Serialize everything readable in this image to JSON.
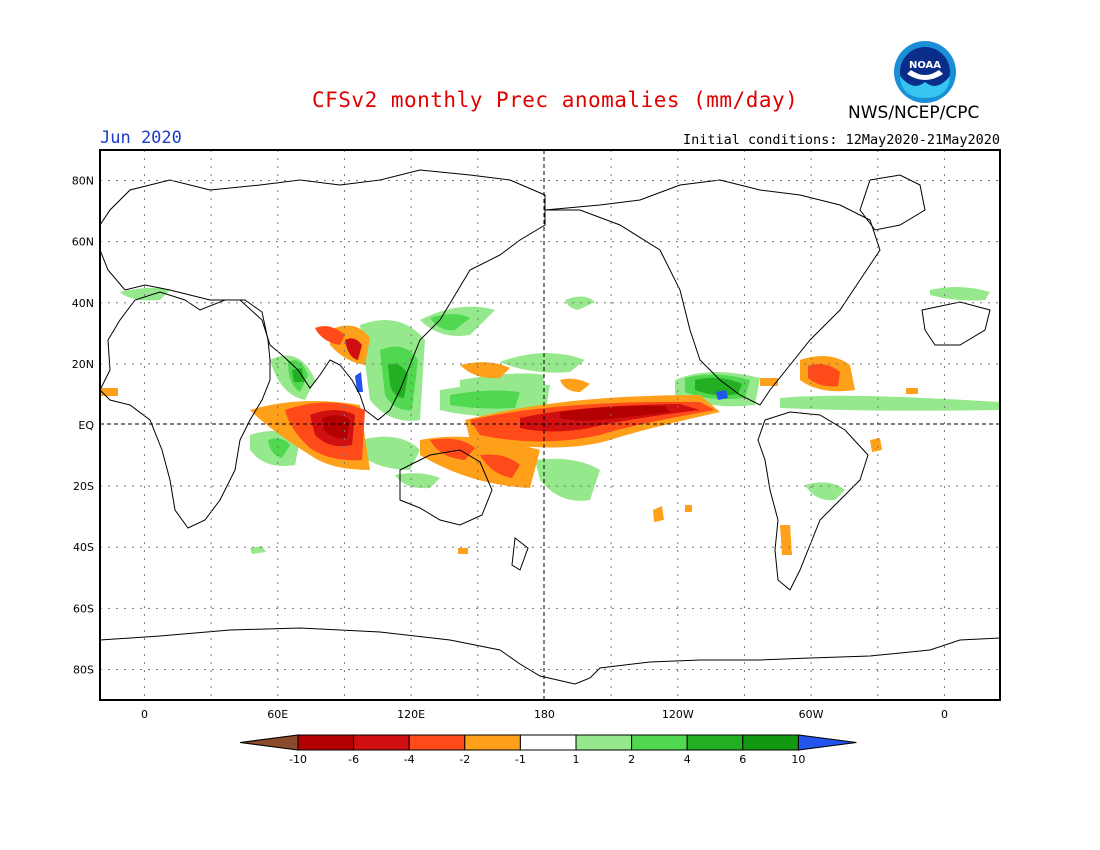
{
  "header": {
    "title": "CFSv2 monthly Prec anomalies (mm/day)",
    "month": "Jun 2020",
    "initial_conditions": "Initial conditions: 12May2020-21May2020",
    "agency": "NWS/NCEP/CPC",
    "logo_text": "NOAA"
  },
  "map": {
    "lat_labels": [
      "80N",
      "60N",
      "40N",
      "20N",
      "EQ",
      "20S",
      "40S",
      "60S",
      "80S"
    ],
    "lon_labels": [
      "0",
      "60E",
      "120E",
      "180",
      "120W",
      "60W",
      "0"
    ],
    "lat_range": [
      -90,
      90
    ],
    "lon_range": [
      -20,
      385
    ],
    "grid": true
  },
  "colorbar": {
    "labels": [
      "-10",
      "-6",
      "-4",
      "-2",
      "-1",
      "1",
      "2",
      "4",
      "6",
      "10"
    ],
    "colors": [
      "#8b4a2a",
      "#b30000",
      "#d01010",
      "#ff4a1a",
      "#ffa01a",
      "#ffffff",
      "#96e88c",
      "#50d850",
      "#22b022",
      "#119911",
      "#2255ee"
    ]
  }
}
